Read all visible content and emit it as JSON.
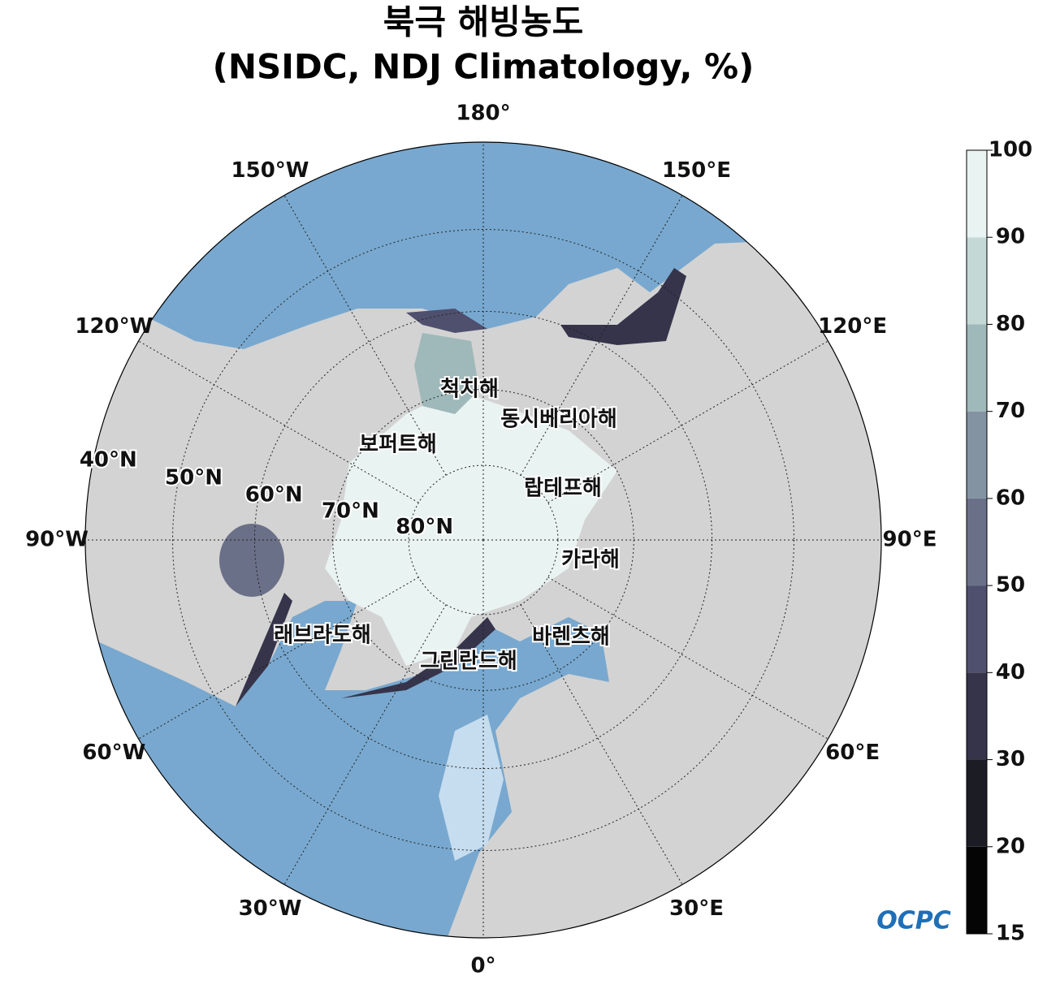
{
  "header": {
    "title": "북극 해빙농도",
    "subtitle": "(NSIDC, NDJ Climatology, %)"
  },
  "map": {
    "longitude_labels": [
      {
        "value": 180,
        "label": "180°"
      },
      {
        "value": 150,
        "label": "150°E"
      },
      {
        "value": 120,
        "label": "120°E"
      },
      {
        "value": 90,
        "label": "90°E"
      },
      {
        "value": 60,
        "label": "60°E"
      },
      {
        "value": 30,
        "label": "30°E"
      },
      {
        "value": 0,
        "label": "0°"
      },
      {
        "value": -30,
        "label": "30°W"
      },
      {
        "value": -60,
        "label": "60°W"
      },
      {
        "value": -90,
        "label": "90°W"
      },
      {
        "value": -120,
        "label": "120°W"
      },
      {
        "value": -150,
        "label": "150°W"
      }
    ],
    "latitude_labels": [
      {
        "value": 80,
        "label": "80°N"
      },
      {
        "value": 70,
        "label": "70°N"
      },
      {
        "value": 60,
        "label": "60°N"
      },
      {
        "value": 50,
        "label": "50°N"
      },
      {
        "value": 40,
        "label": "40°N"
      }
    ],
    "seas": [
      "척치해",
      "동시베리아해",
      "보퍼트해",
      "랍테프해",
      "카라해",
      "래브라도해",
      "바렌츠해",
      "그린란드해"
    ]
  },
  "colorbar": {
    "ticks": [
      15,
      20,
      30,
      40,
      50,
      60,
      70,
      80,
      90,
      100
    ],
    "colors": [
      "#050505",
      "#1c1c24",
      "#35344a",
      "#4f4f6e",
      "#6a7087",
      "#8493a2",
      "#9fb8b9",
      "#c4d9d6",
      "#e9f3f1"
    ]
  },
  "logo": "OCPC"
}
